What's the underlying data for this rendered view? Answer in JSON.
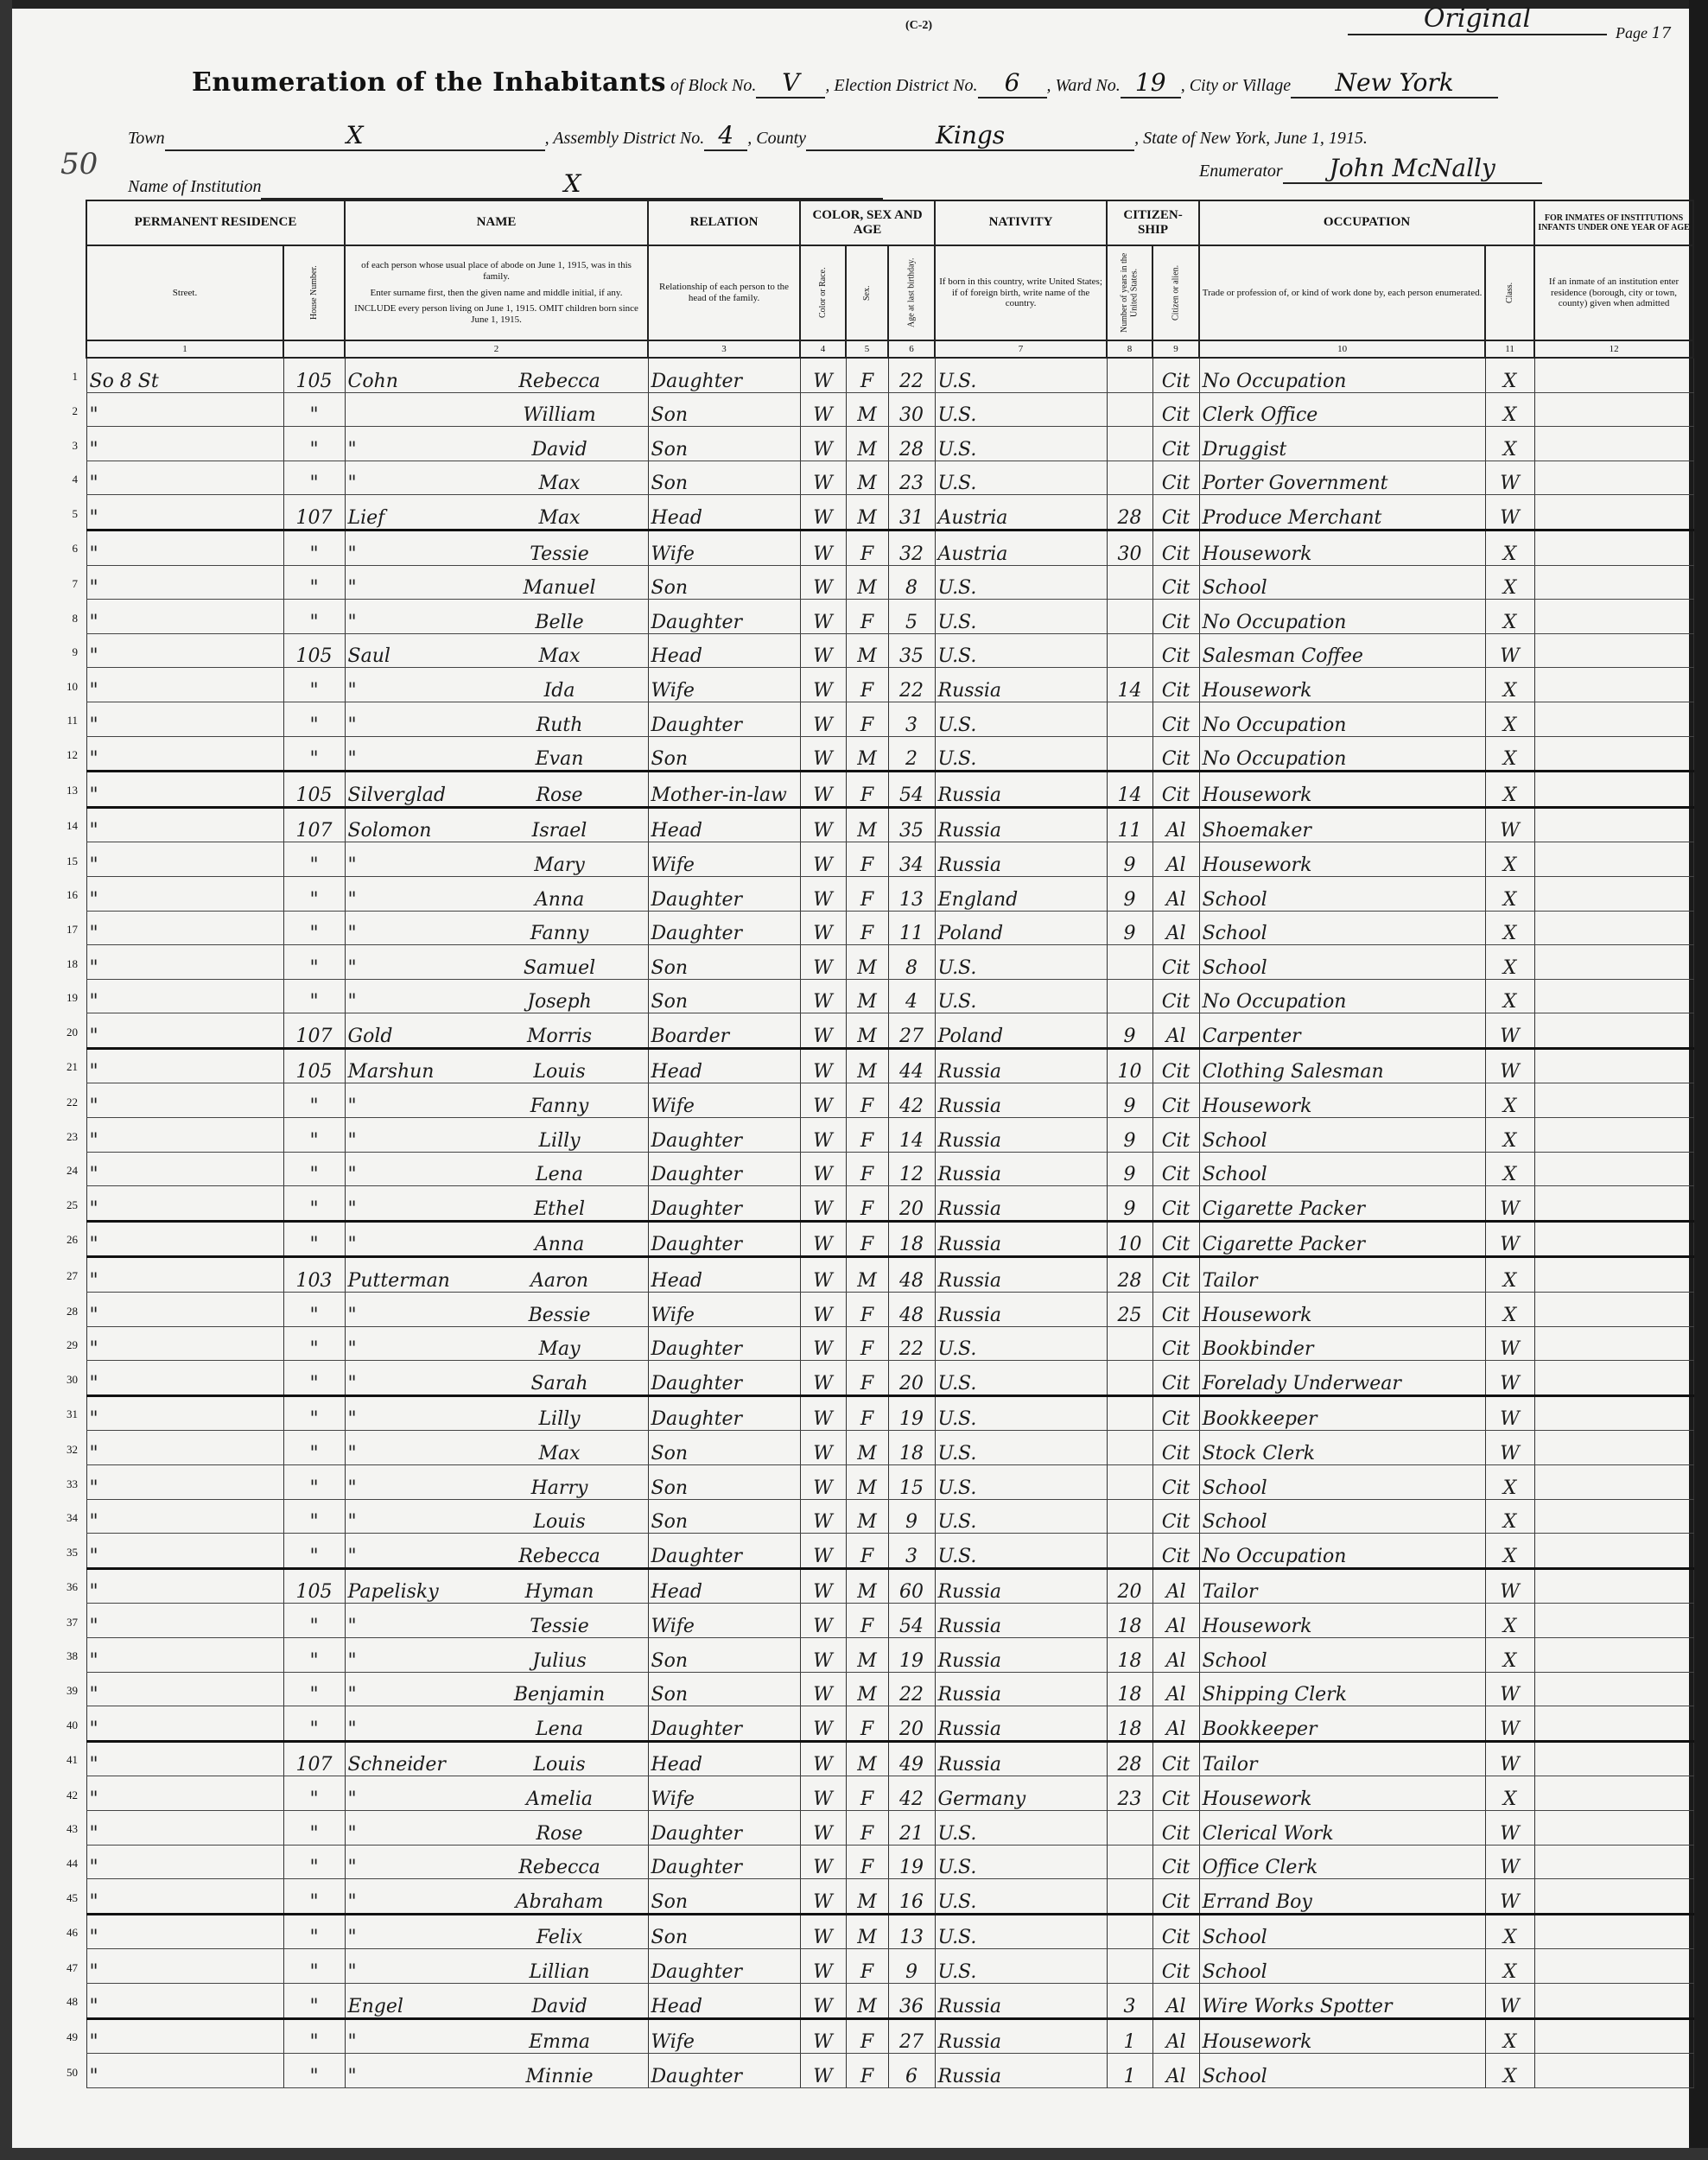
{
  "header": {
    "form_code": "(C-2)",
    "original_note": "Original",
    "page_label": "Page",
    "page_number": "17",
    "margin_mark": "50",
    "title": "Enumeration of the Inhabitants",
    "block_label": "of Block No.",
    "block_no": "V",
    "election_district_label": "Election District No.",
    "election_district_no": "6",
    "ward_label": "Ward No.",
    "ward_no": "19",
    "city_label": "City or Village",
    "city": "New York",
    "town_label": "Town",
    "town": "X",
    "assembly_label": "Assembly District No.",
    "assembly_no": "4",
    "county_label": "County",
    "county": "Kings",
    "state_label": "State of New York, June 1, 1915.",
    "institution_label": "Name of Institution",
    "institution": "X",
    "enumerator_label": "Enumerator",
    "enumerator": "John McNally"
  },
  "columns": {
    "permanent_residence": "PERMANENT RESIDENCE",
    "street": "Street.",
    "house_number": "House Number.",
    "name": "NAME",
    "name_desc": "of each person whose usual place of abode on June 1, 1915, was in this family.",
    "name_instr1": "Enter surname first, then the given name and middle initial, if any.",
    "name_instr2": "INCLUDE every person living on June 1, 1915. OMIT children born since June 1, 1915.",
    "relation": "RELATION",
    "relation_desc": "Relationship of each person to the head of the family.",
    "color_sex_age": "COLOR, SEX AND AGE",
    "color": "Color or Race.",
    "sex": "Sex.",
    "age": "Age at last birthday.",
    "nativity": "NATIVITY",
    "nativity_desc": "If born in this country, write United States; if of foreign birth, write name of the country.",
    "citizenship": "CITIZEN-SHIP",
    "years_in_us": "Number of years in the United States.",
    "citizen_or_alien": "Citizen or alien.",
    "occupation": "OCCUPATION",
    "occupation_desc": "Trade or profession of, or kind of work done by, each person enumerated.",
    "class": "Class.",
    "inmates": "FOR INMATES OF INSTITUTIONS INFANTS UNDER ONE YEAR OF AGE",
    "inmates_desc": "If an inmate of an institution enter residence (borough, city or town, county) given when admitted",
    "numbers": [
      "1",
      "2",
      "3",
      "4",
      "5",
      "6",
      "7",
      "8",
      "9",
      "10",
      "11",
      "12"
    ]
  },
  "rows": [
    [
      "So 8 St",
      "105",
      "Cohn",
      "Rebecca",
      "Daughter",
      "W",
      "F",
      "22",
      "U.S.",
      "",
      "Cit",
      "No Occupation",
      "X"
    ],
    [
      "\"",
      "\"",
      "",
      "William",
      "Son",
      "W",
      "M",
      "30",
      "U.S.",
      "",
      "Cit",
      "Clerk Office",
      "X"
    ],
    [
      "\"",
      "\"",
      "\"",
      "David",
      "Son",
      "W",
      "M",
      "28",
      "U.S.",
      "",
      "Cit",
      "Druggist",
      "X"
    ],
    [
      "\"",
      "\"",
      "\"",
      "Max",
      "Son",
      "W",
      "M",
      "23",
      "U.S.",
      "",
      "Cit",
      "Porter Government",
      "W"
    ],
    [
      "\"",
      "107",
      "Lief",
      "Max",
      "Head",
      "W",
      "M",
      "31",
      "Austria",
      "28",
      "Cit",
      "Produce Merchant",
      "W"
    ],
    [
      "\"",
      "\"",
      "\"",
      "Tessie",
      "Wife",
      "W",
      "F",
      "32",
      "Austria",
      "30",
      "Cit",
      "Housework",
      "X"
    ],
    [
      "\"",
      "\"",
      "\"",
      "Manuel",
      "Son",
      "W",
      "M",
      "8",
      "U.S.",
      "",
      "Cit",
      "School",
      "X"
    ],
    [
      "\"",
      "\"",
      "\"",
      "Belle",
      "Daughter",
      "W",
      "F",
      "5",
      "U.S.",
      "",
      "Cit",
      "No Occupation",
      "X"
    ],
    [
      "\"",
      "105",
      "Saul",
      "Max",
      "Head",
      "W",
      "M",
      "35",
      "U.S.",
      "",
      "Cit",
      "Salesman Coffee",
      "W"
    ],
    [
      "\"",
      "\"",
      "\"",
      "Ida",
      "Wife",
      "W",
      "F",
      "22",
      "Russia",
      "14",
      "Cit",
      "Housework",
      "X"
    ],
    [
      "\"",
      "\"",
      "\"",
      "Ruth",
      "Daughter",
      "W",
      "F",
      "3",
      "U.S.",
      "",
      "Cit",
      "No Occupation",
      "X"
    ],
    [
      "\"",
      "\"",
      "\"",
      "Evan",
      "Son",
      "W",
      "M",
      "2",
      "U.S.",
      "",
      "Cit",
      "No Occupation",
      "X"
    ],
    [
      "\"",
      "105",
      "Silverglad",
      "Rose",
      "Mother-in-law",
      "W",
      "F",
      "54",
      "Russia",
      "14",
      "Cit",
      "Housework",
      "X"
    ],
    [
      "\"",
      "107",
      "Solomon",
      "Israel",
      "Head",
      "W",
      "M",
      "35",
      "Russia",
      "11",
      "Al",
      "Shoemaker",
      "W"
    ],
    [
      "\"",
      "\"",
      "\"",
      "Mary",
      "Wife",
      "W",
      "F",
      "34",
      "Russia",
      "9",
      "Al",
      "Housework",
      "X"
    ],
    [
      "\"",
      "\"",
      "\"",
      "Anna",
      "Daughter",
      "W",
      "F",
      "13",
      "England",
      "9",
      "Al",
      "School",
      "X"
    ],
    [
      "\"",
      "\"",
      "\"",
      "Fanny",
      "Daughter",
      "W",
      "F",
      "11",
      "Poland",
      "9",
      "Al",
      "School",
      "X"
    ],
    [
      "\"",
      "\"",
      "\"",
      "Samuel",
      "Son",
      "W",
      "M",
      "8",
      "U.S.",
      "",
      "Cit",
      "School",
      "X"
    ],
    [
      "\"",
      "\"",
      "\"",
      "Joseph",
      "Son",
      "W",
      "M",
      "4",
      "U.S.",
      "",
      "Cit",
      "No Occupation",
      "X"
    ],
    [
      "\"",
      "107",
      "Gold",
      "Morris",
      "Boarder",
      "W",
      "M",
      "27",
      "Poland",
      "9",
      "Al",
      "Carpenter",
      "W"
    ],
    [
      "\"",
      "105",
      "Marshun",
      "Louis",
      "Head",
      "W",
      "M",
      "44",
      "Russia",
      "10",
      "Cit",
      "Clothing Salesman",
      "W"
    ],
    [
      "\"",
      "\"",
      "\"",
      "Fanny",
      "Wife",
      "W",
      "F",
      "42",
      "Russia",
      "9",
      "Cit",
      "Housework",
      "X"
    ],
    [
      "\"",
      "\"",
      "\"",
      "Lilly",
      "Daughter",
      "W",
      "F",
      "14",
      "Russia",
      "9",
      "Cit",
      "School",
      "X"
    ],
    [
      "\"",
      "\"",
      "\"",
      "Lena",
      "Daughter",
      "W",
      "F",
      "12",
      "Russia",
      "9",
      "Cit",
      "School",
      "X"
    ],
    [
      "\"",
      "\"",
      "\"",
      "Ethel",
      "Daughter",
      "W",
      "F",
      "20",
      "Russia",
      "9",
      "Cit",
      "Cigarette Packer",
      "W"
    ],
    [
      "\"",
      "\"",
      "\"",
      "Anna",
      "Daughter",
      "W",
      "F",
      "18",
      "Russia",
      "10",
      "Cit",
      "Cigarette Packer",
      "W"
    ],
    [
      "\"",
      "103",
      "Putterman",
      "Aaron",
      "Head",
      "W",
      "M",
      "48",
      "Russia",
      "28",
      "Cit",
      "Tailor",
      "X"
    ],
    [
      "\"",
      "\"",
      "\"",
      "Bessie",
      "Wife",
      "W",
      "F",
      "48",
      "Russia",
      "25",
      "Cit",
      "Housework",
      "X"
    ],
    [
      "\"",
      "\"",
      "\"",
      "May",
      "Daughter",
      "W",
      "F",
      "22",
      "U.S.",
      "",
      "Cit",
      "Bookbinder",
      "W"
    ],
    [
      "\"",
      "\"",
      "\"",
      "Sarah",
      "Daughter",
      "W",
      "F",
      "20",
      "U.S.",
      "",
      "Cit",
      "Forelady Underwear",
      "W"
    ],
    [
      "\"",
      "\"",
      "\"",
      "Lilly",
      "Daughter",
      "W",
      "F",
      "19",
      "U.S.",
      "",
      "Cit",
      "Bookkeeper",
      "W"
    ],
    [
      "\"",
      "\"",
      "\"",
      "Max",
      "Son",
      "W",
      "M",
      "18",
      "U.S.",
      "",
      "Cit",
      "Stock Clerk",
      "W"
    ],
    [
      "\"",
      "\"",
      "\"",
      "Harry",
      "Son",
      "W",
      "M",
      "15",
      "U.S.",
      "",
      "Cit",
      "School",
      "X"
    ],
    [
      "\"",
      "\"",
      "\"",
      "Louis",
      "Son",
      "W",
      "M",
      "9",
      "U.S.",
      "",
      "Cit",
      "School",
      "X"
    ],
    [
      "\"",
      "\"",
      "\"",
      "Rebecca",
      "Daughter",
      "W",
      "F",
      "3",
      "U.S.",
      "",
      "Cit",
      "No Occupation",
      "X"
    ],
    [
      "\"",
      "105",
      "Papelisky",
      "Hyman",
      "Head",
      "W",
      "M",
      "60",
      "Russia",
      "20",
      "Al",
      "Tailor",
      "W"
    ],
    [
      "\"",
      "\"",
      "\"",
      "Tessie",
      "Wife",
      "W",
      "F",
      "54",
      "Russia",
      "18",
      "Al",
      "Housework",
      "X"
    ],
    [
      "\"",
      "\"",
      "\"",
      "Julius",
      "Son",
      "W",
      "M",
      "19",
      "Russia",
      "18",
      "Al",
      "School",
      "X"
    ],
    [
      "\"",
      "\"",
      "\"",
      "Benjamin",
      "Son",
      "W",
      "M",
      "22",
      "Russia",
      "18",
      "Al",
      "Shipping Clerk",
      "W"
    ],
    [
      "\"",
      "\"",
      "\"",
      "Lena",
      "Daughter",
      "W",
      "F",
      "20",
      "Russia",
      "18",
      "Al",
      "Bookkeeper",
      "W"
    ],
    [
      "\"",
      "107",
      "Schneider",
      "Louis",
      "Head",
      "W",
      "M",
      "49",
      "Russia",
      "28",
      "Cit",
      "Tailor",
      "W"
    ],
    [
      "\"",
      "\"",
      "\"",
      "Amelia",
      "Wife",
      "W",
      "F",
      "42",
      "Germany",
      "23",
      "Cit",
      "Housework",
      "X"
    ],
    [
      "\"",
      "\"",
      "\"",
      "Rose",
      "Daughter",
      "W",
      "F",
      "21",
      "U.S.",
      "",
      "Cit",
      "Clerical Work",
      "W"
    ],
    [
      "\"",
      "\"",
      "\"",
      "Rebecca",
      "Daughter",
      "W",
      "F",
      "19",
      "U.S.",
      "",
      "Cit",
      "Office Clerk",
      "W"
    ],
    [
      "\"",
      "\"",
      "\"",
      "Abraham",
      "Son",
      "W",
      "M",
      "16",
      "U.S.",
      "",
      "Cit",
      "Errand Boy",
      "W"
    ],
    [
      "\"",
      "\"",
      "\"",
      "Felix",
      "Son",
      "W",
      "M",
      "13",
      "U.S.",
      "",
      "Cit",
      "School",
      "X"
    ],
    [
      "\"",
      "\"",
      "\"",
      "Lillian",
      "Daughter",
      "W",
      "F",
      "9",
      "U.S.",
      "",
      "Cit",
      "School",
      "X"
    ],
    [
      "\"",
      "\"",
      "Engel",
      "David",
      "Head",
      "W",
      "M",
      "36",
      "Russia",
      "3",
      "Al",
      "Wire Works Spotter",
      "W"
    ],
    [
      "\"",
      "\"",
      "\"",
      "Emma",
      "Wife",
      "W",
      "F",
      "27",
      "Russia",
      "1",
      "Al",
      "Housework",
      "X"
    ],
    [
      "\"",
      "\"",
      "\"",
      "Minnie",
      "Daughter",
      "W",
      "F",
      "6",
      "Russia",
      "1",
      "Al",
      "School",
      "X"
    ]
  ]
}
